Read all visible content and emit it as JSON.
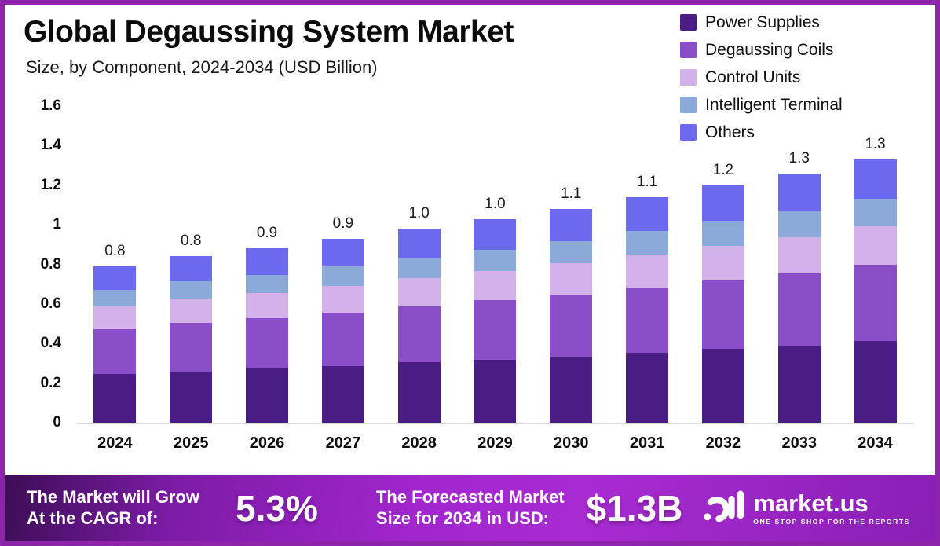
{
  "frame": {
    "border_color": "#8e24aa",
    "background": "#ffffff"
  },
  "header": {
    "title": "Global Degaussing System Market",
    "subtitle": "Size, by Component, 2024-2034 (USD Billion)"
  },
  "chart_data": {
    "type": "bar",
    "stacked": true,
    "title": "Global Degaussing System Market",
    "subtitle": "Size, by Component, 2024-2034 (USD Billion)",
    "xlabel": "",
    "ylabel": "",
    "units": "USD Billion",
    "grid": false,
    "legend_position": "top-right",
    "ylim": [
      0,
      1.6
    ],
    "yticks": [
      0,
      0.2,
      0.4,
      0.6,
      0.8,
      1,
      1.2,
      1.4,
      1.6
    ],
    "ytick_labels": [
      "0",
      "0.2",
      "0.4",
      "0.6",
      "0.8",
      "1",
      "1.2",
      "1.4",
      "1.6"
    ],
    "categories": [
      "2024",
      "2025",
      "2026",
      "2027",
      "2028",
      "2029",
      "2030",
      "2031",
      "2032",
      "2033",
      "2034"
    ],
    "totals_labels": [
      "0.8",
      "0.8",
      "0.9",
      "0.9",
      "1.0",
      "1.0",
      "1.1",
      "1.1",
      "1.2",
      "1.3",
      "1.3"
    ],
    "series": [
      {
        "name": "Power Supplies",
        "color": "#4a1d85",
        "values": [
          0.245,
          0.26,
          0.273,
          0.288,
          0.304,
          0.319,
          0.335,
          0.353,
          0.372,
          0.391,
          0.412
        ]
      },
      {
        "name": "Degaussing Coils",
        "color": "#8a4fc8",
        "values": [
          0.229,
          0.244,
          0.255,
          0.27,
          0.284,
          0.299,
          0.313,
          0.331,
          0.348,
          0.365,
          0.386
        ]
      },
      {
        "name": "Control Units",
        "color": "#d3b1e9",
        "values": [
          0.115,
          0.122,
          0.128,
          0.135,
          0.142,
          0.149,
          0.157,
          0.165,
          0.174,
          0.183,
          0.193
        ]
      },
      {
        "name": "Intelligent Terminal",
        "color": "#8caad9",
        "values": [
          0.083,
          0.088,
          0.092,
          0.098,
          0.103,
          0.108,
          0.113,
          0.12,
          0.126,
          0.132,
          0.14
        ]
      },
      {
        "name": "Others",
        "color": "#6c69ee",
        "values": [
          0.119,
          0.126,
          0.132,
          0.14,
          0.147,
          0.155,
          0.162,
          0.171,
          0.18,
          0.189,
          0.2
        ]
      }
    ]
  },
  "banner": {
    "cagr_label_lines": [
      "The Market will Grow",
      "At the CAGR of:"
    ],
    "cagr_value": "5.3%",
    "forecast_label_lines": [
      "The Forecasted Market",
      "Size for 2034 in USD:"
    ],
    "forecast_value": "$1.3B",
    "logo_text": "market.us",
    "logo_tagline": "ONE STOP SHOP FOR THE REPORTS"
  }
}
